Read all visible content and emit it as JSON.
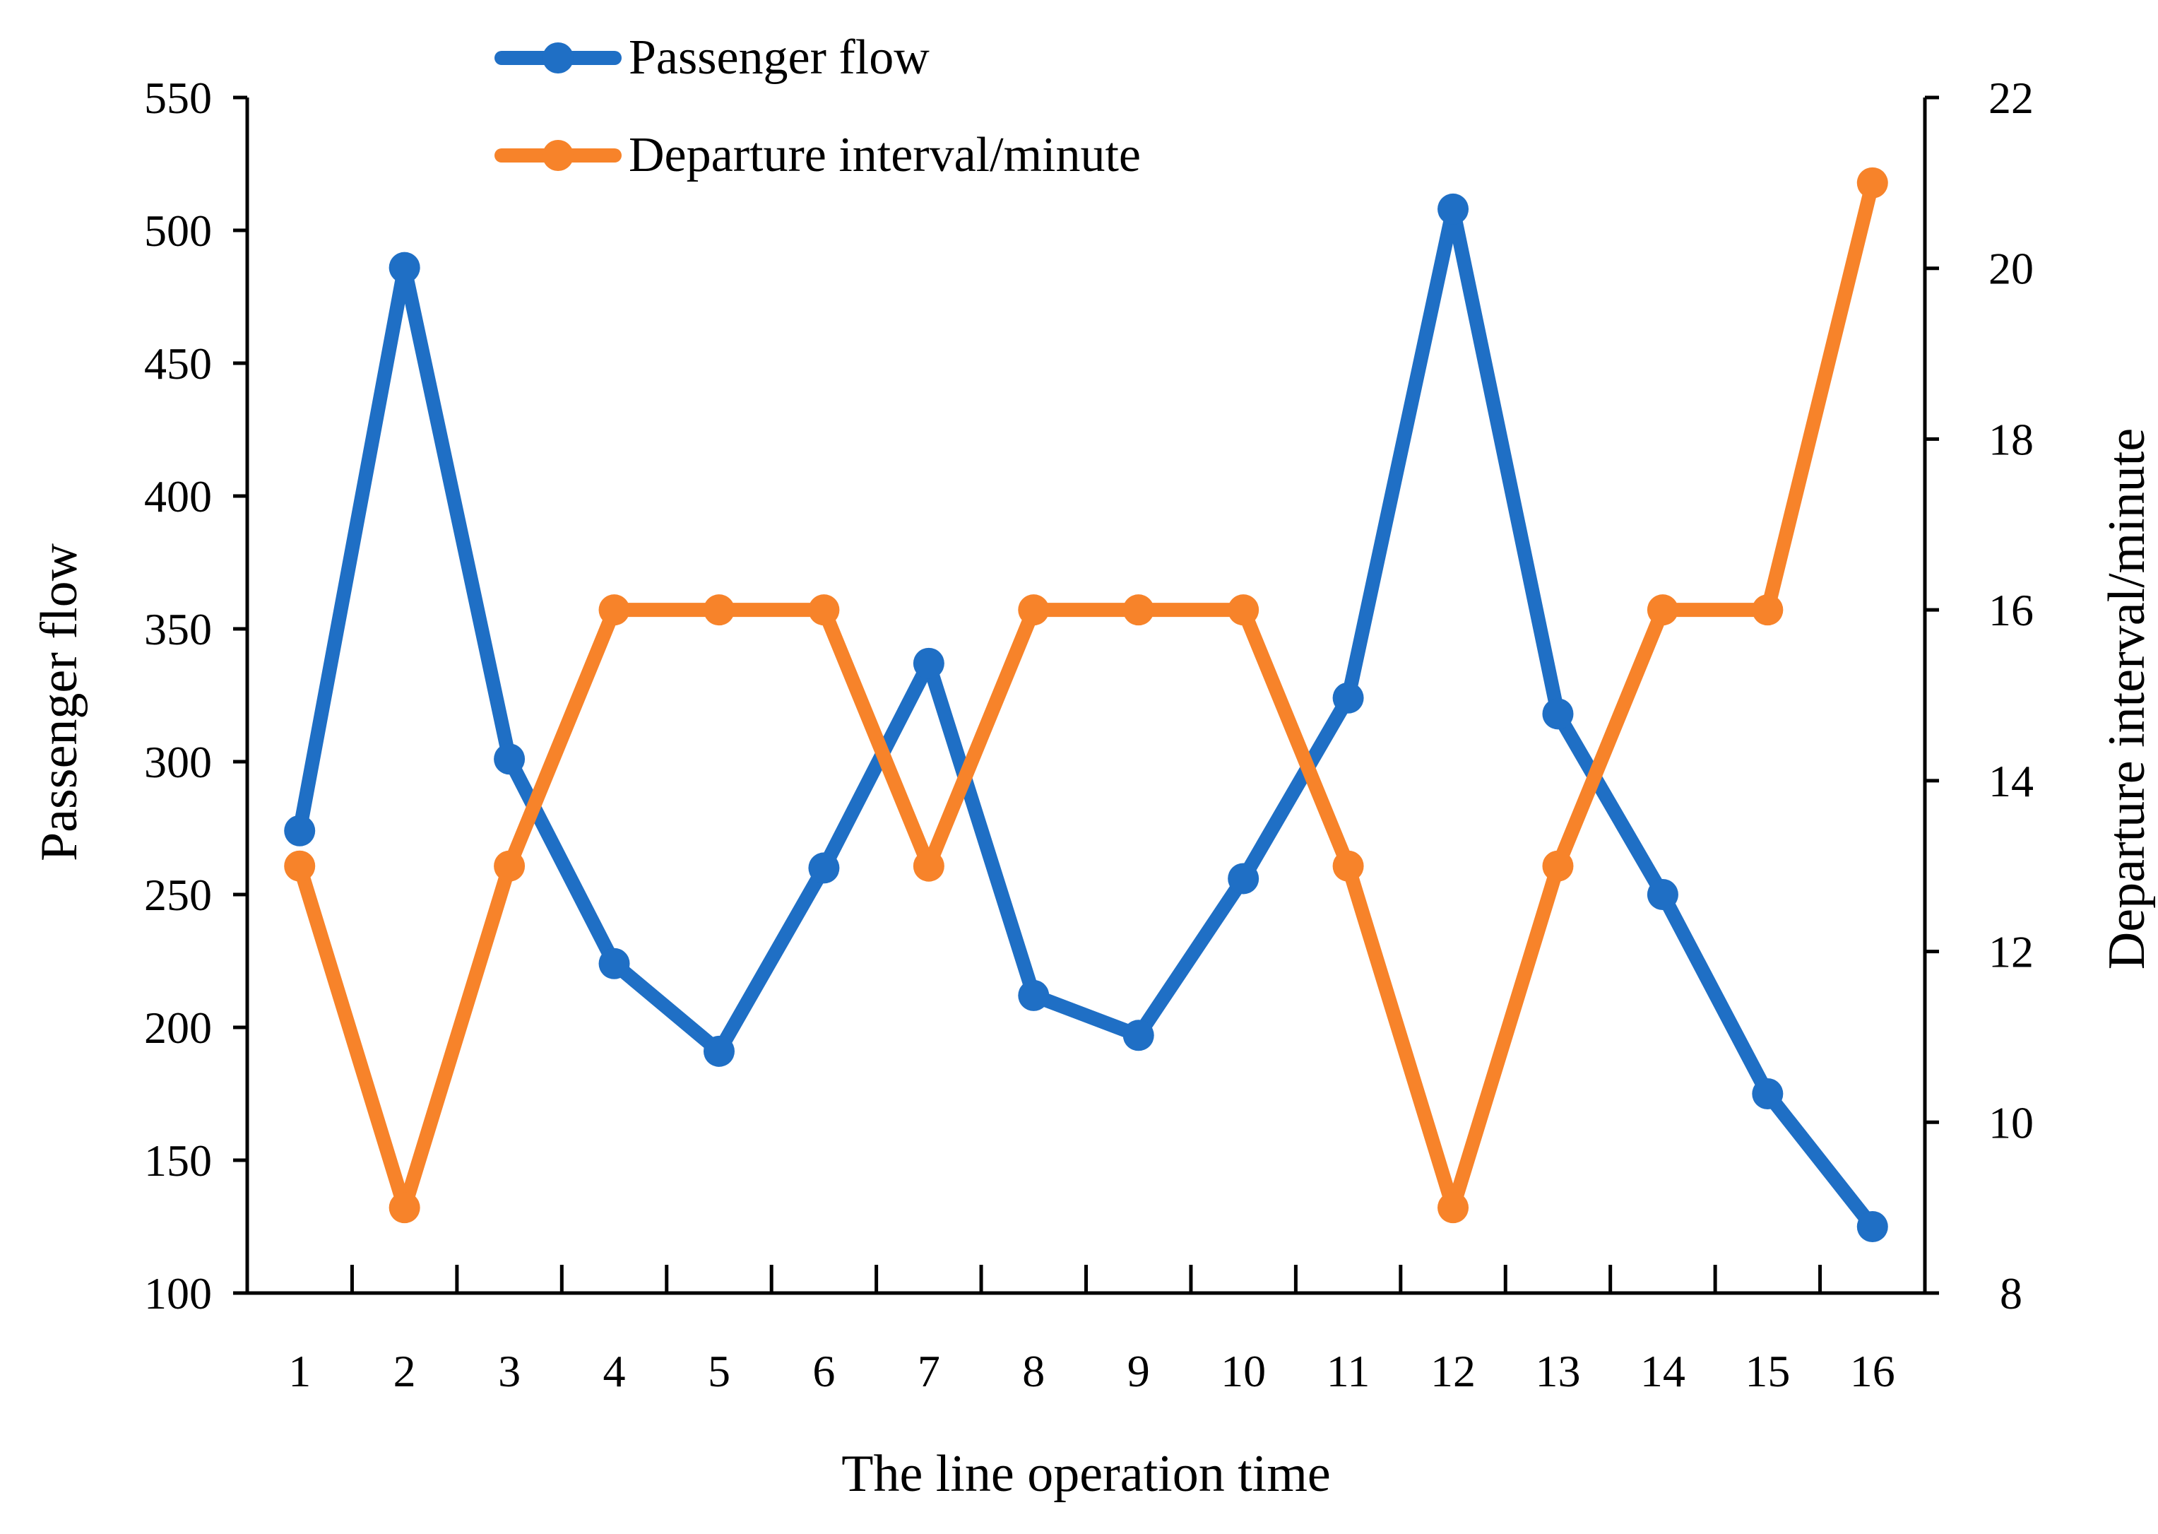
{
  "chart_data": {
    "type": "line",
    "title": "",
    "xlabel": "The line operation time",
    "ylabel": "Passenger flow",
    "y2label": "Departure interval/minute",
    "categories": [
      "1",
      "2",
      "3",
      "4",
      "5",
      "6",
      "7",
      "8",
      "9",
      "10",
      "11",
      "12",
      "13",
      "14",
      "15",
      "16"
    ],
    "ylim": [
      100,
      550
    ],
    "yticks": [
      100,
      150,
      200,
      250,
      300,
      350,
      400,
      450,
      500,
      550
    ],
    "y2lim": [
      8,
      22
    ],
    "y2ticks": [
      8,
      10,
      12,
      14,
      16,
      18,
      20,
      22
    ],
    "legend_position": "top-center",
    "grid": false,
    "series": [
      {
        "name": "Passenger flow",
        "axis": "left",
        "color": "#1f6fc5",
        "values": [
          274,
          486,
          301,
          224,
          191,
          260,
          337,
          212,
          197,
          256,
          324,
          508,
          318,
          250,
          175,
          125
        ]
      },
      {
        "name": "Departure interval/minute",
        "axis": "right",
        "color": "#f7832a",
        "values": [
          13,
          9,
          13,
          16,
          16,
          16,
          13,
          16,
          16,
          16,
          13,
          9,
          13,
          16,
          16,
          21
        ]
      }
    ]
  }
}
